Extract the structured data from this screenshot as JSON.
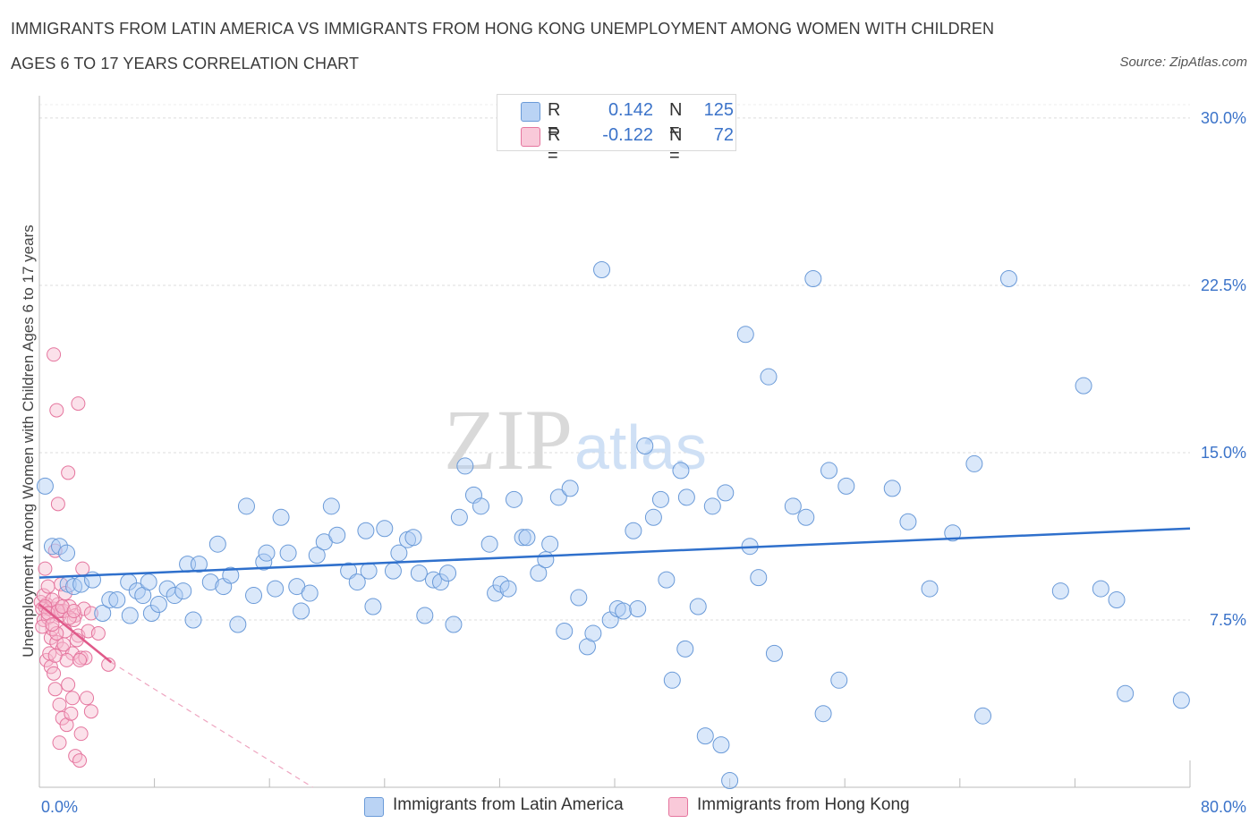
{
  "title_line1": "IMMIGRANTS FROM LATIN AMERICA VS IMMIGRANTS FROM HONG KONG UNEMPLOYMENT AMONG WOMEN WITH CHILDREN",
  "title_line2": "AGES 6 TO 17 YEARS CORRELATION CHART",
  "source": "Source: ZipAtlas.com",
  "watermark": "ZIPatlas",
  "legend": {
    "r_label": "R =",
    "n_label": "N =",
    "series": [
      {
        "r": "0.142",
        "n": "125"
      },
      {
        "r": "-0.122",
        "n": "72"
      }
    ]
  },
  "colors": {
    "blue_fill": "#aecdf3",
    "blue_stroke": "#6a9ad8",
    "blue_line": "#2f70cc",
    "pink_fill": "#f7bdd0",
    "pink_stroke": "#e5759e",
    "pink_line": "#e05a8a",
    "axis_text": "#3b73c9",
    "grid": "#dddddd"
  },
  "chart_data": {
    "type": "scatter",
    "title": "IMMIGRANTS FROM LATIN AMERICA VS IMMIGRANTS FROM HONG KONG UNEMPLOYMENT AMONG WOMEN WITH CHILDREN AGES 6 TO 17 YEARS CORRELATION CHART",
    "xlabel": "",
    "ylabel": "Unemployment Among Women with Children Ages 6 to 17 years",
    "xlim": [
      0,
      80
    ],
    "ylim": [
      0,
      31
    ],
    "x_tick_labels": [
      "0.0%",
      "80.0%"
    ],
    "y_ticks": [
      7.5,
      15,
      22.5,
      30
    ],
    "y_tick_labels": [
      "7.5%",
      "15.0%",
      "22.5%",
      "30.0%"
    ],
    "grid": true,
    "legend_position": "top-center and bottom",
    "series": [
      {
        "name": "Immigrants from Latin America",
        "r": 0.142,
        "n": 125,
        "trend": {
          "x": [
            0,
            80
          ],
          "y": [
            9.4,
            11.6
          ],
          "dashed_extension": false
        },
        "points": [
          [
            0.4,
            13.5
          ],
          [
            0.9,
            10.8
          ],
          [
            1.4,
            10.8
          ],
          [
            1.9,
            10.5
          ],
          [
            2.0,
            9.1
          ],
          [
            2.4,
            9.0
          ],
          [
            2.9,
            9.1
          ],
          [
            3.7,
            9.3
          ],
          [
            4.4,
            7.8
          ],
          [
            4.9,
            8.4
          ],
          [
            5.4,
            8.4
          ],
          [
            6.2,
            9.2
          ],
          [
            6.3,
            7.7
          ],
          [
            6.8,
            8.8
          ],
          [
            7.2,
            8.6
          ],
          [
            7.6,
            9.2
          ],
          [
            7.8,
            7.8
          ],
          [
            8.3,
            8.2
          ],
          [
            8.9,
            8.9
          ],
          [
            9.4,
            8.6
          ],
          [
            10.0,
            8.8
          ],
          [
            10.3,
            10.0
          ],
          [
            10.7,
            7.5
          ],
          [
            11.1,
            10.0
          ],
          [
            11.9,
            9.2
          ],
          [
            12.4,
            10.9
          ],
          [
            12.8,
            9.0
          ],
          [
            13.3,
            9.5
          ],
          [
            13.8,
            7.3
          ],
          [
            14.4,
            12.6
          ],
          [
            14.9,
            8.6
          ],
          [
            15.6,
            10.1
          ],
          [
            15.8,
            10.5
          ],
          [
            16.4,
            8.9
          ],
          [
            16.8,
            12.1
          ],
          [
            17.3,
            10.5
          ],
          [
            17.9,
            9.0
          ],
          [
            18.2,
            7.9
          ],
          [
            18.8,
            8.7
          ],
          [
            19.3,
            10.4
          ],
          [
            19.8,
            11.0
          ],
          [
            20.3,
            12.6
          ],
          [
            20.7,
            11.3
          ],
          [
            21.5,
            9.7
          ],
          [
            22.1,
            9.2
          ],
          [
            22.7,
            11.5
          ],
          [
            22.9,
            9.7
          ],
          [
            23.2,
            8.1
          ],
          [
            24.0,
            11.6
          ],
          [
            24.6,
            9.7
          ],
          [
            25.0,
            10.5
          ],
          [
            25.6,
            11.1
          ],
          [
            26.0,
            11.2
          ],
          [
            26.4,
            9.6
          ],
          [
            26.8,
            7.7
          ],
          [
            27.4,
            9.3
          ],
          [
            27.9,
            9.2
          ],
          [
            28.4,
            9.6
          ],
          [
            28.8,
            7.3
          ],
          [
            29.2,
            12.1
          ],
          [
            29.6,
            14.4
          ],
          [
            30.2,
            13.1
          ],
          [
            30.7,
            12.6
          ],
          [
            31.3,
            10.9
          ],
          [
            31.7,
            8.7
          ],
          [
            32.1,
            9.1
          ],
          [
            32.6,
            8.9
          ],
          [
            33.0,
            12.9
          ],
          [
            33.6,
            11.2
          ],
          [
            33.9,
            11.2
          ],
          [
            34.7,
            9.6
          ],
          [
            35.2,
            10.2
          ],
          [
            35.5,
            10.9
          ],
          [
            36.1,
            13.0
          ],
          [
            36.5,
            7.0
          ],
          [
            36.9,
            13.4
          ],
          [
            37.5,
            8.5
          ],
          [
            38.1,
            6.3
          ],
          [
            38.5,
            6.9
          ],
          [
            39.1,
            23.2
          ],
          [
            39.7,
            7.5
          ],
          [
            40.2,
            8.0
          ],
          [
            40.6,
            7.9
          ],
          [
            41.3,
            11.5
          ],
          [
            41.6,
            8.0
          ],
          [
            42.1,
            15.3
          ],
          [
            42.7,
            12.1
          ],
          [
            43.2,
            12.9
          ],
          [
            43.6,
            9.3
          ],
          [
            44.0,
            4.8
          ],
          [
            44.6,
            14.2
          ],
          [
            44.9,
            6.2
          ],
          [
            45.0,
            13.0
          ],
          [
            45.8,
            8.1
          ],
          [
            46.3,
            2.3
          ],
          [
            46.8,
            12.6
          ],
          [
            47.4,
            1.9
          ],
          [
            47.7,
            13.2
          ],
          [
            48.0,
            0.3
          ],
          [
            49.1,
            20.3
          ],
          [
            49.4,
            10.8
          ],
          [
            50.0,
            9.4
          ],
          [
            50.7,
            18.4
          ],
          [
            51.1,
            6.0
          ],
          [
            52.4,
            12.6
          ],
          [
            53.3,
            12.1
          ],
          [
            53.8,
            22.8
          ],
          [
            54.5,
            3.3
          ],
          [
            54.9,
            14.2
          ],
          [
            55.6,
            4.8
          ],
          [
            56.1,
            13.5
          ],
          [
            59.3,
            13.4
          ],
          [
            60.4,
            11.9
          ],
          [
            61.9,
            8.9
          ],
          [
            63.5,
            11.4
          ],
          [
            65.0,
            14.5
          ],
          [
            65.6,
            3.2
          ],
          [
            67.4,
            22.8
          ],
          [
            71.0,
            8.8
          ],
          [
            72.6,
            18.0
          ],
          [
            73.8,
            8.9
          ],
          [
            74.9,
            8.4
          ],
          [
            75.5,
            4.2
          ],
          [
            79.4,
            3.9
          ]
        ]
      },
      {
        "name": "Immigrants from Hong Kong",
        "r": -0.122,
        "n": 72,
        "trend": {
          "x": [
            0,
            5.0
          ],
          "y": [
            8.2,
            5.6
          ],
          "dashed_extension": {
            "x": [
              5.0,
              19.0
            ],
            "y": [
              5.6,
              0
            ]
          }
        },
        "points": [
          [
            0.1,
            8.3
          ],
          [
            0.2,
            8.0
          ],
          [
            0.3,
            7.5
          ],
          [
            0.4,
            9.8
          ],
          [
            0.5,
            8.2
          ],
          [
            0.6,
            7.6
          ],
          [
            0.7,
            8.0
          ],
          [
            0.8,
            6.7
          ],
          [
            0.9,
            7.1
          ],
          [
            1.0,
            8.0
          ],
          [
            1.1,
            10.6
          ],
          [
            1.2,
            6.5
          ],
          [
            1.3,
            8.2
          ],
          [
            1.4,
            7.7
          ],
          [
            1.5,
            7.9
          ],
          [
            1.6,
            6.2
          ],
          [
            1.7,
            7.9
          ],
          [
            1.8,
            7.0
          ],
          [
            2.0,
            4.6
          ],
          [
            2.1,
            8.1
          ],
          [
            2.3,
            6.0
          ],
          [
            2.5,
            7.7
          ],
          [
            2.7,
            6.8
          ],
          [
            2.9,
            5.8
          ],
          [
            3.1,
            8.0
          ],
          [
            3.4,
            7.0
          ],
          [
            0.2,
            7.2
          ],
          [
            0.5,
            5.7
          ],
          [
            0.8,
            5.4
          ],
          [
            1.1,
            4.4
          ],
          [
            1.4,
            3.7
          ],
          [
            1.6,
            3.1
          ],
          [
            1.9,
            2.8
          ],
          [
            2.2,
            3.3
          ],
          [
            2.5,
            1.4
          ],
          [
            2.8,
            1.2
          ],
          [
            3.3,
            4.0
          ],
          [
            3.6,
            3.4
          ],
          [
            1.0,
            19.4
          ],
          [
            1.2,
            16.9
          ],
          [
            2.7,
            17.2
          ],
          [
            1.3,
            12.7
          ],
          [
            2.0,
            14.1
          ],
          [
            3.0,
            9.8
          ],
          [
            0.3,
            8.6
          ],
          [
            0.6,
            9.0
          ],
          [
            0.9,
            8.4
          ],
          [
            1.5,
            9.1
          ],
          [
            1.8,
            8.7
          ],
          [
            2.4,
            7.5
          ],
          [
            1.2,
            6.9
          ],
          [
            1.7,
            6.4
          ],
          [
            2.6,
            6.6
          ],
          [
            3.2,
            5.8
          ],
          [
            4.1,
            6.9
          ],
          [
            4.8,
            5.5
          ],
          [
            0.7,
            6.0
          ],
          [
            1.0,
            5.1
          ],
          [
            1.9,
            5.7
          ],
          [
            2.3,
            4.0
          ],
          [
            2.9,
            2.4
          ],
          [
            1.4,
            2.0
          ],
          [
            0.4,
            8.1
          ],
          [
            0.6,
            7.8
          ],
          [
            0.9,
            7.3
          ],
          [
            1.3,
            7.9
          ],
          [
            1.6,
            8.1
          ],
          [
            2.1,
            7.6
          ],
          [
            2.4,
            7.9
          ],
          [
            2.8,
            5.7
          ],
          [
            3.6,
            7.8
          ],
          [
            1.1,
            5.9
          ]
        ]
      }
    ]
  },
  "bottom_legend": [
    "Immigrants from Latin America",
    "Immigrants from Hong Kong"
  ]
}
